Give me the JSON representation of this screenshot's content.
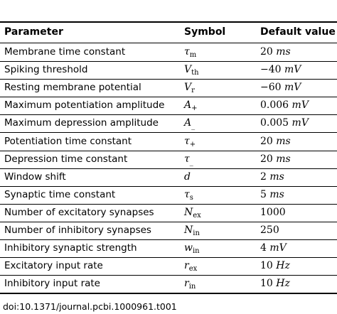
{
  "headers": {
    "parameter": "Parameter",
    "symbol": "Symbol",
    "default_value": "Default value"
  },
  "rows": [
    {
      "parameter": "Membrane time constant",
      "symbol": "τ",
      "symbol_sub": "m",
      "value": "20",
      "unit": "ms"
    },
    {
      "parameter": "Spiking threshold",
      "symbol": "V",
      "symbol_sub": "th",
      "value": "−40",
      "unit": "mV"
    },
    {
      "parameter": "Resting membrane potential",
      "symbol": "V",
      "symbol_sub": "r",
      "value": "−60",
      "unit": "mV"
    },
    {
      "parameter": "Maximum potentiation amplitude",
      "symbol": "A",
      "symbol_sub": "+",
      "value": "0.006",
      "unit": "mV"
    },
    {
      "parameter": "Maximum depression amplitude",
      "symbol": "A",
      "symbol_sub": "_",
      "value": "0.005",
      "unit": "mV"
    },
    {
      "parameter": "Potentiation time constant",
      "symbol": "τ",
      "symbol_sub": "+",
      "value": "20",
      "unit": "ms"
    },
    {
      "parameter": "Depression time constant",
      "symbol": "τ",
      "symbol_sub": "_",
      "value": "20",
      "unit": "ms"
    },
    {
      "parameter": "Window shift",
      "symbol": "d",
      "symbol_sub": "",
      "value": "2",
      "unit": "ms"
    },
    {
      "parameter": "Synaptic time constant",
      "symbol": "τ",
      "symbol_sub": "s",
      "value": "5",
      "unit": "ms"
    },
    {
      "parameter": "Number of excitatory synapses",
      "symbol": "N",
      "symbol_sub": "ex",
      "value": "1000",
      "unit": ""
    },
    {
      "parameter": "Number of inhibitory synapses",
      "symbol": "N",
      "symbol_sub": "in",
      "value": "250",
      "unit": ""
    },
    {
      "parameter": "Inhibitory synaptic strength",
      "symbol": "w",
      "symbol_sub": "in",
      "value": "4",
      "unit": "mV"
    },
    {
      "parameter": "Excitatory input rate",
      "symbol": "r",
      "symbol_sub": "ex",
      "value": "10",
      "unit": "Hz"
    },
    {
      "parameter": "Inhibitory input rate",
      "symbol": "r",
      "symbol_sub": "in",
      "value": "10",
      "unit": "Hz"
    }
  ],
  "footer": {
    "doi": "doi:10.1371/journal.pcbi.1000961.t001"
  }
}
